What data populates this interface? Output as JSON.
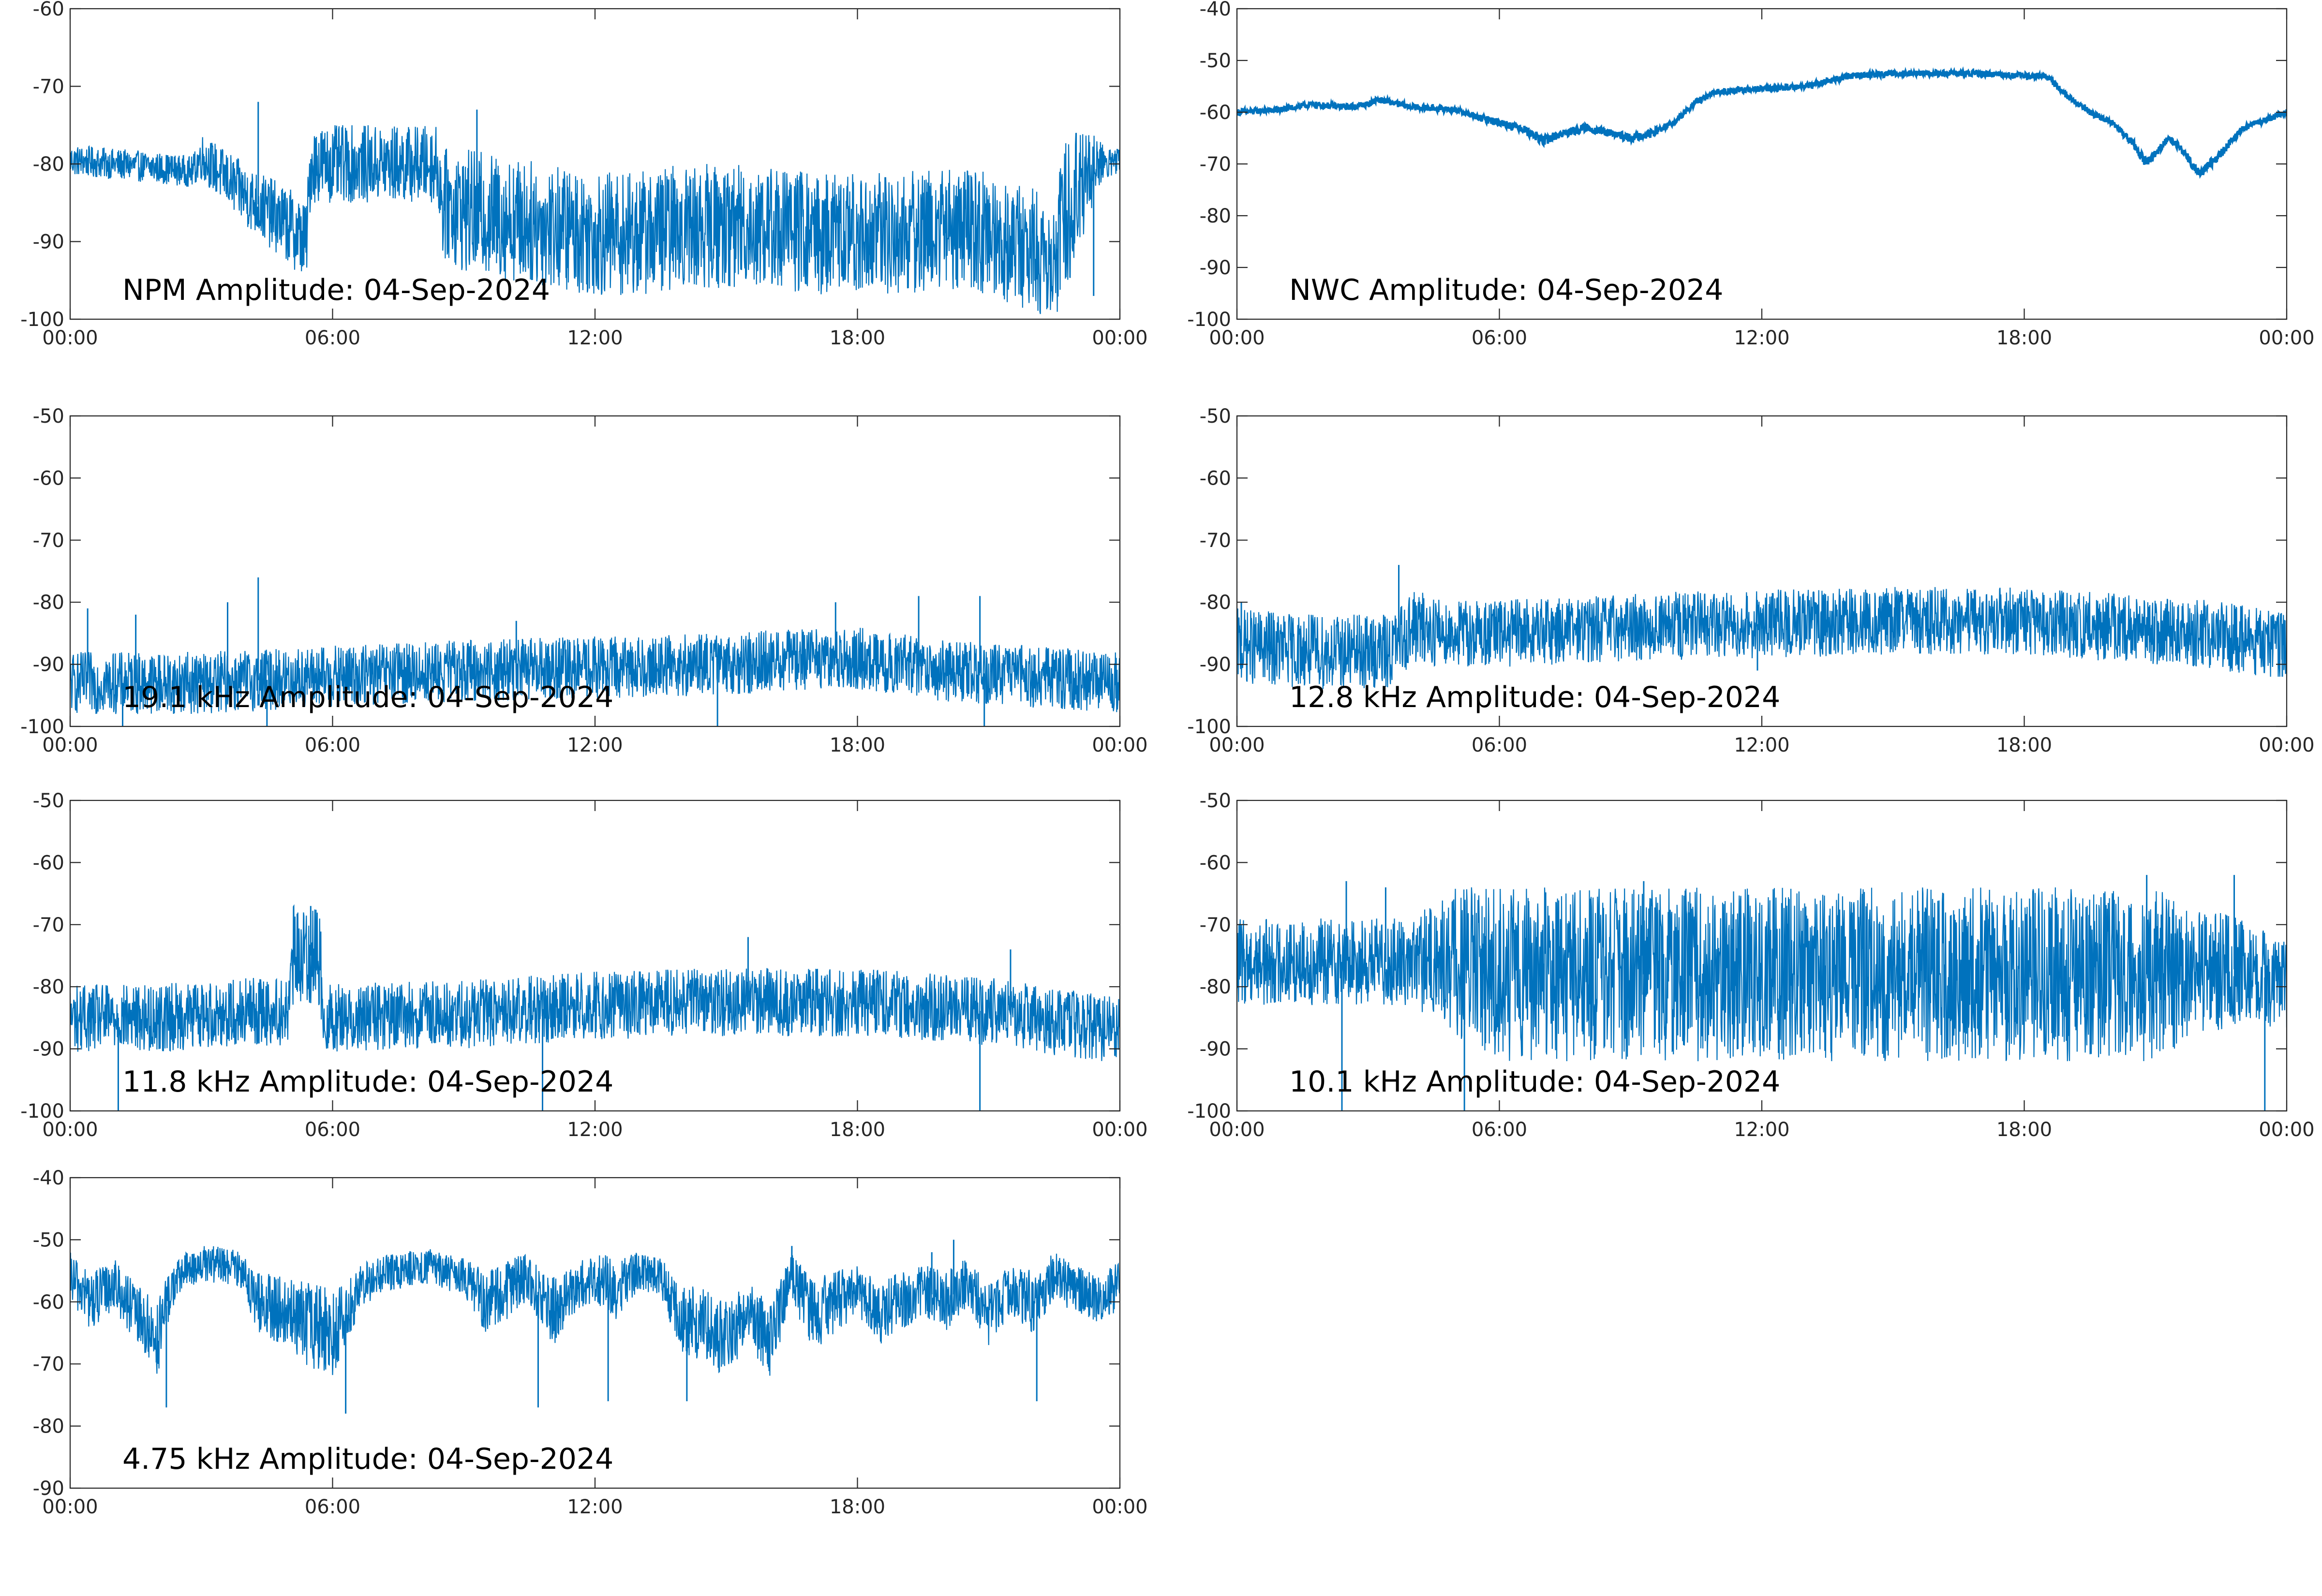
{
  "figure": {
    "date": "04-Sep-2024",
    "line_color": "#0072bd",
    "axis_color": "#262626",
    "background": "#ffffff"
  },
  "chart_data": [
    {
      "type": "line",
      "label": "NPM Amplitude: 04-Sep-2024",
      "x_ticks": [
        "00:00",
        "06:00",
        "12:00",
        "18:00",
        "00:00"
      ],
      "xlim_hours": [
        0,
        24
      ],
      "ylim": [
        -100,
        -60
      ],
      "y_ticks": [
        -60,
        -70,
        -80,
        -90,
        -100
      ],
      "grid": false,
      "series": [
        {
          "x_hours": [
            0,
            1,
            2,
            2.8,
            3,
            4,
            5,
            5.4,
            5.5,
            6,
            7,
            8,
            8.4,
            8.5,
            9,
            10,
            11,
            12,
            13,
            14,
            15,
            16,
            17,
            18,
            19,
            20,
            21,
            22,
            22.5,
            22.8,
            23,
            23.5,
            24
          ],
          "center": [
            -79.5,
            -80,
            -80.5,
            -81,
            -79,
            -84,
            -88,
            -90,
            -80,
            -80,
            -80,
            -80,
            -80,
            -85,
            -86,
            -87,
            -88,
            -89,
            -89,
            -88,
            -88,
            -88,
            -89,
            -89,
            -89,
            -88,
            -89,
            -91,
            -92,
            -86,
            -83,
            -80,
            -79.5
          ],
          "spread": [
            2,
            2,
            2,
            2,
            3,
            4,
            5,
            5,
            5,
            5,
            5,
            5,
            5,
            7,
            8,
            8,
            8,
            8,
            8,
            8,
            8,
            8,
            8,
            8,
            8,
            8,
            8,
            8,
            8,
            10,
            10,
            3,
            2
          ],
          "spikes": [
            [
              4.3,
              -72
            ],
            [
              5.8,
              -77
            ],
            [
              9.3,
              -73
            ],
            [
              23.0,
              -76
            ],
            [
              23.4,
              -97
            ]
          ]
        }
      ]
    },
    {
      "type": "line",
      "label": "NWC Amplitude: 04-Sep-2024",
      "x_ticks": [
        "00:00",
        "06:00",
        "12:00",
        "18:00",
        "00:00"
      ],
      "xlim_hours": [
        0,
        24
      ],
      "ylim": [
        -100,
        -40
      ],
      "y_ticks": [
        -40,
        -50,
        -60,
        -70,
        -80,
        -90,
        -100
      ],
      "grid": false,
      "series": [
        {
          "x_hours": [
            0,
            1,
            1.7,
            2.5,
            3,
            3.2,
            4,
            5,
            5.5,
            6,
            6.5,
            7,
            7.5,
            8,
            8.5,
            9,
            9.5,
            10,
            10.5,
            11,
            12,
            13,
            14,
            15,
            16,
            17,
            18,
            18.5,
            19,
            19.5,
            20,
            20.5,
            20.8,
            21,
            21.3,
            21.6,
            22,
            22.5,
            23,
            24
          ],
          "center": [
            -60,
            -59.5,
            -58.5,
            -59,
            -58.5,
            -57.5,
            -59,
            -59.5,
            -61,
            -62,
            -63,
            -65.5,
            -64,
            -63,
            -64,
            -65,
            -64,
            -62,
            -58,
            -56,
            -55.5,
            -55,
            -53,
            -52.5,
            -52.5,
            -52.5,
            -53,
            -53,
            -57,
            -60,
            -62,
            -66,
            -70,
            -68,
            -65,
            -67,
            -72,
            -68,
            -63,
            -60
          ],
          "spread": [
            0.6,
            0.6,
            0.6,
            0.6,
            0.6,
            0.6,
            0.6,
            0.6,
            0.6,
            0.8,
            0.8,
            1,
            0.8,
            0.8,
            0.8,
            0.8,
            0.8,
            0.6,
            0.6,
            0.6,
            0.6,
            0.6,
            0.6,
            0.6,
            0.6,
            0.6,
            0.6,
            0.6,
            0.6,
            0.6,
            0.6,
            0.8,
            1,
            0.8,
            0.6,
            0.8,
            1,
            0.8,
            0.6,
            0.6
          ],
          "spikes": []
        }
      ]
    },
    {
      "type": "line",
      "label": "19.1 kHz Amplitude: 04-Sep-2024",
      "x_ticks": [
        "00:00",
        "06:00",
        "12:00",
        "18:00",
        "00:00"
      ],
      "xlim_hours": [
        0,
        24
      ],
      "ylim": [
        -100,
        -50
      ],
      "y_ticks": [
        -50,
        -60,
        -70,
        -80,
        -90,
        -100
      ],
      "grid": false,
      "series": [
        {
          "x_hours": [
            0,
            3,
            6,
            9,
            12,
            15,
            17,
            18,
            20,
            22,
            24
          ],
          "center": [
            -93,
            -93,
            -92,
            -91,
            -90.5,
            -90,
            -89,
            -89,
            -91,
            -92,
            -93
          ],
          "spread": [
            5,
            5,
            5,
            5,
            5,
            5,
            5,
            5,
            5,
            5,
            5
          ],
          "spikes": [
            [
              0.4,
              -81
            ],
            [
              1.5,
              -82
            ],
            [
              3.6,
              -80
            ],
            [
              4.3,
              -76
            ],
            [
              10.2,
              -83
            ],
            [
              17.5,
              -80
            ],
            [
              19.4,
              -79
            ],
            [
              20.8,
              -79
            ],
            [
              1.2,
              -100
            ],
            [
              4.5,
              -100
            ],
            [
              14.8,
              -100
            ],
            [
              20.9,
              -100
            ]
          ]
        }
      ]
    },
    {
      "type": "line",
      "label": "12.8 kHz Amplitude: 04-Sep-2024",
      "x_ticks": [
        "00:00",
        "06:00",
        "12:00",
        "18:00",
        "00:00"
      ],
      "xlim_hours": [
        0,
        24
      ],
      "ylim": [
        -100,
        -50
      ],
      "y_ticks": [
        -50,
        -60,
        -70,
        -80,
        -90,
        -100
      ],
      "grid": false,
      "series": [
        {
          "x_hours": [
            0,
            2,
            3.5,
            4,
            5,
            6,
            9,
            12,
            15,
            18,
            20,
            22,
            24
          ],
          "center": [
            -87,
            -88,
            -88,
            -84,
            -85,
            -85,
            -84,
            -83.5,
            -83,
            -83,
            -84,
            -85,
            -87
          ],
          "spread": [
            6,
            6,
            6,
            6,
            5.5,
            5.5,
            5.5,
            5.5,
            5.5,
            5.5,
            5.5,
            5.5,
            5.5
          ],
          "spikes": [
            [
              3.7,
              -74
            ],
            [
              0.1,
              -80
            ],
            [
              11.9,
              -91
            ],
            [
              23.9,
              -92
            ]
          ]
        }
      ]
    },
    {
      "type": "line",
      "label": "11.8 kHz Amplitude: 04-Sep-2024",
      "x_ticks": [
        "00:00",
        "06:00",
        "12:00",
        "18:00",
        "00:00"
      ],
      "xlim_hours": [
        0,
        24
      ],
      "ylim": [
        -100,
        -50
      ],
      "y_ticks": [
        -50,
        -60,
        -70,
        -80,
        -90,
        -100
      ],
      "grid": false,
      "series": [
        {
          "x_hours": [
            0,
            2,
            4,
            5,
            5.1,
            5.7,
            5.8,
            6,
            9,
            12,
            15,
            18,
            21,
            24
          ],
          "center": [
            -85,
            -85,
            -84,
            -84,
            -75,
            -75,
            -85,
            -85,
            -84.5,
            -83,
            -82.5,
            -82.5,
            -84,
            -87
          ],
          "spread": [
            5.5,
            5.5,
            5.5,
            5.5,
            8,
            8,
            5.5,
            5.5,
            5.5,
            5.5,
            5.5,
            5.5,
            5.5,
            5.5
          ],
          "spikes": [
            [
              5.5,
              -67
            ],
            [
              1.1,
              -100
            ],
            [
              15.5,
              -72
            ],
            [
              10.8,
              -100
            ],
            [
              20.8,
              -100
            ],
            [
              21.5,
              -74
            ]
          ]
        }
      ]
    },
    {
      "type": "line",
      "label": "10.1 kHz Amplitude: 04-Sep-2024",
      "x_ticks": [
        "00:00",
        "06:00",
        "12:00",
        "18:00",
        "00:00"
      ],
      "xlim_hours": [
        0,
        24
      ],
      "ylim": [
        -100,
        -50
      ],
      "y_ticks": [
        -50,
        -60,
        -70,
        -80,
        -90,
        -100
      ],
      "grid": false,
      "series": [
        {
          "x_hours": [
            0,
            2,
            4,
            5,
            6,
            9,
            12,
            15,
            18,
            21,
            22,
            23,
            24
          ],
          "center": [
            -76,
            -76,
            -76,
            -76,
            -78,
            -78,
            -78,
            -78,
            -78,
            -78,
            -78,
            -77,
            -80
          ],
          "spread": [
            7,
            7,
            7,
            12,
            14,
            14,
            14,
            14,
            14,
            14,
            10,
            9,
            7
          ],
          "spikes": [
            [
              2.4,
              -100
            ],
            [
              2.5,
              -63
            ],
            [
              3.4,
              -64
            ],
            [
              5.2,
              -100
            ],
            [
              9.3,
              -63
            ],
            [
              20.8,
              -62
            ],
            [
              22.8,
              -62
            ],
            [
              23.5,
              -100
            ]
          ]
        }
      ]
    },
    {
      "type": "line",
      "label": "4.75 kHz Amplitude: 04-Sep-2024",
      "x_ticks": [
        "00:00",
        "06:00",
        "12:00",
        "18:00",
        "00:00"
      ],
      "xlim_hours": [
        0,
        24
      ],
      "ylim": [
        -90,
        -40
      ],
      "y_ticks": [
        -40,
        -50,
        -60,
        -70,
        -80,
        -90
      ],
      "grid": false,
      "series": [
        {
          "x_hours": [
            0,
            0.5,
            1,
            1.5,
            2,
            2.3,
            2.6,
            3,
            3.5,
            4,
            4.2,
            5,
            5.5,
            6,
            6.3,
            6.6,
            7,
            7.5,
            8,
            8.5,
            9,
            9.5,
            10,
            10.5,
            11,
            11.5,
            12,
            12.5,
            13,
            13.5,
            14,
            14.5,
            15,
            15.5,
            16,
            16.5,
            17,
            17.5,
            18,
            18.5,
            19,
            19.5,
            20,
            20.5,
            21,
            21.5,
            22,
            22.5,
            23,
            23.5,
            24
          ],
          "center": [
            -56,
            -60,
            -57,
            -62,
            -66,
            -58,
            -55,
            -54,
            -54,
            -55,
            -60,
            -62,
            -64,
            -65,
            -62,
            -58,
            -56,
            -55,
            -54,
            -55,
            -56,
            -60,
            -58,
            -56,
            -62,
            -58,
            -56,
            -58,
            -55,
            -56,
            -63,
            -64,
            -66,
            -62,
            -66,
            -56,
            -62,
            -60,
            -58,
            -62,
            -60,
            -58,
            -60,
            -57,
            -62,
            -58,
            -60,
            -56,
            -58,
            -60,
            -57
          ],
          "spread": [
            4,
            5,
            4,
            5,
            6,
            4,
            3,
            3,
            3,
            3,
            5,
            6,
            7,
            7,
            5,
            4,
            3,
            3,
            3,
            3,
            3,
            5,
            5,
            4,
            6,
            4,
            4,
            5,
            3,
            3,
            6,
            6,
            6,
            5,
            6,
            4,
            6,
            5,
            4,
            5,
            5,
            4,
            5,
            4,
            5,
            4,
            5,
            4,
            4,
            4,
            4
          ],
          "spikes": [
            [
              2.2,
              -77
            ],
            [
              6.3,
              -78
            ],
            [
              10.7,
              -77
            ],
            [
              12.3,
              -76
            ],
            [
              14.1,
              -76
            ],
            [
              22.1,
              -76
            ],
            [
              16.5,
              -51
            ],
            [
              19.7,
              -52
            ],
            [
              20.2,
              -50
            ]
          ]
        }
      ]
    }
  ]
}
